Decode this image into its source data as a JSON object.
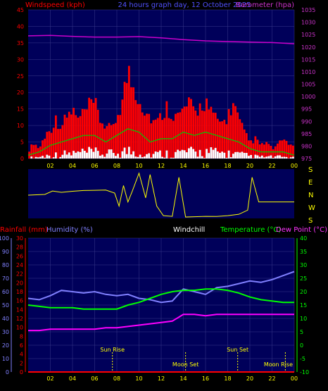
{
  "colors": {
    "background": "#000000",
    "panel": "#00005a",
    "grid": "#3a3a8a",
    "wind_gust": "#ff0000",
    "wind_avg": "#00cc00",
    "wind_low": "#ffffff",
    "barometer": "#cc00cc",
    "direction": "#ffff00",
    "rain": "#ff0000",
    "humidity": "#8080ff",
    "windchill": "#ffffff",
    "temperature": "#00ff00",
    "dewpoint": "#ff00ff",
    "x_tick_label": "#ffff00",
    "marker": "#ffff00"
  },
  "header": {
    "windspeed_label": "Windspeed (kph)",
    "title": "24 hours graph day, 12 October 2025",
    "barometer_label": "Barometer (hpa)"
  },
  "labels2": {
    "rain": "Rainfall (mm)",
    "humidity": "Humidity (%)",
    "windchill": "Windchill",
    "temperature": "Temperature (°C)",
    "dewpoint": "Dew Point (°C)"
  },
  "chart_data": [
    {
      "type": "area",
      "name": "wind",
      "x_ticks": [
        "02",
        "04",
        "06",
        "08",
        "10",
        "12",
        "14",
        "16",
        "18",
        "20",
        "22",
        "00"
      ],
      "x_range_hours": [
        0,
        24
      ],
      "y_left": {
        "ticks": [
          "0",
          "5",
          "10",
          "15",
          "20",
          "25",
          "30",
          "35",
          "40",
          "45"
        ],
        "range": [
          0,
          45
        ]
      },
      "y_right": {
        "ticks": [
          "975",
          "980",
          "985",
          "990",
          "995",
          "1000",
          "1005",
          "1010",
          "1015",
          "1020",
          "1025",
          "1030",
          "1035"
        ],
        "range": [
          975,
          1035
        ]
      },
      "grid": true,
      "gust_kph": [
        {
          "t": 0.0,
          "v": 2
        },
        {
          "t": 0.5,
          "v": 5
        },
        {
          "t": 1.0,
          "v": 3
        },
        {
          "t": 1.5,
          "v": 7
        },
        {
          "t": 2.0,
          "v": 9
        },
        {
          "t": 2.5,
          "v": 12
        },
        {
          "t": 3.0,
          "v": 10
        },
        {
          "t": 3.5,
          "v": 13
        },
        {
          "t": 4.0,
          "v": 15
        },
        {
          "t": 4.5,
          "v": 12
        },
        {
          "t": 5.0,
          "v": 14
        },
        {
          "t": 5.5,
          "v": 16
        },
        {
          "t": 6.0,
          "v": 17
        },
        {
          "t": 6.5,
          "v": 12
        },
        {
          "t": 7.0,
          "v": 10
        },
        {
          "t": 7.5,
          "v": 9
        },
        {
          "t": 8.0,
          "v": 13
        },
        {
          "t": 8.5,
          "v": 18
        },
        {
          "t": 9.0,
          "v": 27
        },
        {
          "t": 9.5,
          "v": 22
        },
        {
          "t": 10.0,
          "v": 19
        },
        {
          "t": 10.5,
          "v": 15
        },
        {
          "t": 11.0,
          "v": 13
        },
        {
          "t": 11.5,
          "v": 11
        },
        {
          "t": 12.0,
          "v": 13
        },
        {
          "t": 12.5,
          "v": 16
        },
        {
          "t": 13.0,
          "v": 14
        },
        {
          "t": 13.5,
          "v": 13
        },
        {
          "t": 14.0,
          "v": 15
        },
        {
          "t": 14.5,
          "v": 17
        },
        {
          "t": 15.0,
          "v": 14
        },
        {
          "t": 15.5,
          "v": 16
        },
        {
          "t": 16.0,
          "v": 18
        },
        {
          "t": 16.5,
          "v": 14
        },
        {
          "t": 17.0,
          "v": 12
        },
        {
          "t": 17.5,
          "v": 11
        },
        {
          "t": 18.0,
          "v": 13
        },
        {
          "t": 18.5,
          "v": 17
        },
        {
          "t": 19.0,
          "v": 12
        },
        {
          "t": 19.5,
          "v": 8
        },
        {
          "t": 20.0,
          "v": 5
        },
        {
          "t": 20.5,
          "v": 6
        },
        {
          "t": 21.0,
          "v": 4
        },
        {
          "t": 21.5,
          "v": 5
        },
        {
          "t": 22.0,
          "v": 3
        },
        {
          "t": 22.5,
          "v": 4
        },
        {
          "t": 23.0,
          "v": 6
        },
        {
          "t": 23.5,
          "v": 5
        },
        {
          "t": 24.0,
          "v": 3
        }
      ],
      "average_kph": [
        {
          "t": 0.0,
          "v": 1
        },
        {
          "t": 1.0,
          "v": 2
        },
        {
          "t": 2.0,
          "v": 4
        },
        {
          "t": 3.0,
          "v": 5
        },
        {
          "t": 4.0,
          "v": 6
        },
        {
          "t": 5.0,
          "v": 7
        },
        {
          "t": 6.0,
          "v": 7
        },
        {
          "t": 7.0,
          "v": 5
        },
        {
          "t": 8.0,
          "v": 7
        },
        {
          "t": 9.0,
          "v": 9
        },
        {
          "t": 10.0,
          "v": 8
        },
        {
          "t": 11.0,
          "v": 5
        },
        {
          "t": 12.0,
          "v": 6
        },
        {
          "t": 13.0,
          "v": 6
        },
        {
          "t": 14.0,
          "v": 8
        },
        {
          "t": 15.0,
          "v": 7
        },
        {
          "t": 16.0,
          "v": 8
        },
        {
          "t": 17.0,
          "v": 7
        },
        {
          "t": 18.0,
          "v": 6
        },
        {
          "t": 19.0,
          "v": 5
        },
        {
          "t": 20.0,
          "v": 3
        },
        {
          "t": 21.0,
          "v": 2
        },
        {
          "t": 22.0,
          "v": 2
        },
        {
          "t": 23.0,
          "v": 2
        },
        {
          "t": 24.0,
          "v": 1
        }
      ],
      "barometer_hpa": [
        {
          "t": 0,
          "v": 1024.5
        },
        {
          "t": 2,
          "v": 1024.7
        },
        {
          "t": 4,
          "v": 1024.3
        },
        {
          "t": 6,
          "v": 1024.0
        },
        {
          "t": 8,
          "v": 1024.0
        },
        {
          "t": 10,
          "v": 1024.2
        },
        {
          "t": 12,
          "v": 1023.7
        },
        {
          "t": 14,
          "v": 1023.0
        },
        {
          "t": 16,
          "v": 1022.5
        },
        {
          "t": 18,
          "v": 1022.2
        },
        {
          "t": 20,
          "v": 1022.0
        },
        {
          "t": 22,
          "v": 1021.8
        },
        {
          "t": 24,
          "v": 1021.3
        }
      ]
    },
    {
      "type": "line",
      "name": "wind-direction",
      "direction_labels": [
        "S",
        "E",
        "N",
        "W",
        "S"
      ],
      "direction_range_deg": [
        0,
        360
      ],
      "direction_deg": [
        {
          "t": 0.0,
          "v": 170
        },
        {
          "t": 1.5,
          "v": 175
        },
        {
          "t": 2.2,
          "v": 200
        },
        {
          "t": 3.0,
          "v": 190
        },
        {
          "t": 4.0,
          "v": 198
        },
        {
          "t": 5.0,
          "v": 204
        },
        {
          "t": 6.0,
          "v": 205
        },
        {
          "t": 7.0,
          "v": 207
        },
        {
          "t": 7.8,
          "v": 185
        },
        {
          "t": 8.2,
          "v": 90
        },
        {
          "t": 8.6,
          "v": 240
        },
        {
          "t": 9.0,
          "v": 120
        },
        {
          "t": 9.4,
          "v": 200
        },
        {
          "t": 10.0,
          "v": 330
        },
        {
          "t": 10.6,
          "v": 150
        },
        {
          "t": 11.0,
          "v": 320
        },
        {
          "t": 11.6,
          "v": 90
        },
        {
          "t": 12.2,
          "v": 20
        },
        {
          "t": 13.0,
          "v": 15
        },
        {
          "t": 13.6,
          "v": 300
        },
        {
          "t": 14.2,
          "v": 10
        },
        {
          "t": 15.0,
          "v": 12
        },
        {
          "t": 16.0,
          "v": 15
        },
        {
          "t": 17.0,
          "v": 14
        },
        {
          "t": 18.0,
          "v": 20
        },
        {
          "t": 19.0,
          "v": 30
        },
        {
          "t": 19.8,
          "v": 60
        },
        {
          "t": 20.2,
          "v": 300
        },
        {
          "t": 20.8,
          "v": 120
        },
        {
          "t": 21.5,
          "v": 120
        },
        {
          "t": 24.0,
          "v": 120
        }
      ]
    },
    {
      "type": "line",
      "name": "temperature-humidity",
      "x_ticks": [
        "02",
        "04",
        "06",
        "08",
        "10",
        "12",
        "14",
        "16",
        "18",
        "20",
        "22",
        "00"
      ],
      "y_humidity": {
        "ticks": [
          "0",
          "10",
          "20",
          "30",
          "40",
          "50",
          "60",
          "70",
          "80",
          "90",
          "100"
        ],
        "range": [
          0,
          100
        ]
      },
      "y_rain": {
        "ticks": [
          "0",
          "2",
          "4",
          "6",
          "8",
          "10",
          "12",
          "14",
          "16",
          "18",
          "20",
          "22",
          "24",
          "26",
          "28",
          "30"
        ],
        "range": [
          0,
          30
        ]
      },
      "y_temperature": {
        "ticks": [
          "-10",
          "-5",
          "0",
          "5",
          "10",
          "15",
          "20",
          "25",
          "30",
          "35",
          "40"
        ],
        "range": [
          -10,
          40
        ]
      },
      "humidity_pct": [
        {
          "t": 0,
          "v": 55
        },
        {
          "t": 1,
          "v": 54
        },
        {
          "t": 2,
          "v": 57
        },
        {
          "t": 3,
          "v": 61
        },
        {
          "t": 4,
          "v": 60
        },
        {
          "t": 5,
          "v": 59
        },
        {
          "t": 6,
          "v": 60
        },
        {
          "t": 7,
          "v": 58
        },
        {
          "t": 8,
          "v": 57
        },
        {
          "t": 9,
          "v": 58
        },
        {
          "t": 10,
          "v": 55
        },
        {
          "t": 11,
          "v": 54
        },
        {
          "t": 12,
          "v": 52
        },
        {
          "t": 13,
          "v": 53
        },
        {
          "t": 14,
          "v": 62
        },
        {
          "t": 15,
          "v": 60
        },
        {
          "t": 16,
          "v": 58
        },
        {
          "t": 17,
          "v": 63
        },
        {
          "t": 18,
          "v": 64
        },
        {
          "t": 19,
          "v": 66
        },
        {
          "t": 20,
          "v": 68
        },
        {
          "t": 21,
          "v": 67
        },
        {
          "t": 22,
          "v": 69
        },
        {
          "t": 23,
          "v": 72
        },
        {
          "t": 24,
          "v": 75
        }
      ],
      "temperature_c": [
        {
          "t": 0,
          "v": 15
        },
        {
          "t": 1,
          "v": 14.5
        },
        {
          "t": 2,
          "v": 14
        },
        {
          "t": 3,
          "v": 14
        },
        {
          "t": 4,
          "v": 14
        },
        {
          "t": 5,
          "v": 13.5
        },
        {
          "t": 6,
          "v": 13.5
        },
        {
          "t": 7,
          "v": 13.5
        },
        {
          "t": 8,
          "v": 13.5
        },
        {
          "t": 9,
          "v": 15
        },
        {
          "t": 10,
          "v": 16
        },
        {
          "t": 11,
          "v": 17.5
        },
        {
          "t": 12,
          "v": 19
        },
        {
          "t": 13,
          "v": 20
        },
        {
          "t": 14,
          "v": 20.5
        },
        {
          "t": 15,
          "v": 20.5
        },
        {
          "t": 16,
          "v": 21
        },
        {
          "t": 17,
          "v": 21
        },
        {
          "t": 18,
          "v": 20.5
        },
        {
          "t": 19,
          "v": 19.5
        },
        {
          "t": 20,
          "v": 18
        },
        {
          "t": 21,
          "v": 17
        },
        {
          "t": 22,
          "v": 16.5
        },
        {
          "t": 23,
          "v": 16
        },
        {
          "t": 24,
          "v": 16
        }
      ],
      "dewpoint_c": [
        {
          "t": 0,
          "v": 5.5
        },
        {
          "t": 1,
          "v": 5.5
        },
        {
          "t": 2,
          "v": 6
        },
        {
          "t": 3,
          "v": 6
        },
        {
          "t": 4,
          "v": 6
        },
        {
          "t": 5,
          "v": 6
        },
        {
          "t": 6,
          "v": 6
        },
        {
          "t": 7,
          "v": 6.5
        },
        {
          "t": 8,
          "v": 6.5
        },
        {
          "t": 9,
          "v": 7
        },
        {
          "t": 10,
          "v": 7.5
        },
        {
          "t": 11,
          "v": 8
        },
        {
          "t": 12,
          "v": 8.5
        },
        {
          "t": 13,
          "v": 9
        },
        {
          "t": 14,
          "v": 11.5
        },
        {
          "t": 15,
          "v": 11.5
        },
        {
          "t": 16,
          "v": 11
        },
        {
          "t": 17,
          "v": 11.5
        },
        {
          "t": 18,
          "v": 11.5
        },
        {
          "t": 19,
          "v": 11.5
        },
        {
          "t": 20,
          "v": 11.5
        },
        {
          "t": 21,
          "v": 11.5
        },
        {
          "t": 22,
          "v": 11.5
        },
        {
          "t": 23,
          "v": 11.5
        },
        {
          "t": 24,
          "v": 11.5
        }
      ],
      "rain_mm": [
        {
          "t": 0,
          "v": 0
        },
        {
          "t": 24,
          "v": 0
        }
      ],
      "events": [
        {
          "label": "Sun Rise",
          "t": 7.6
        },
        {
          "label": "Moon Set",
          "t": 14.2
        },
        {
          "label": "Sun Set",
          "t": 18.9
        },
        {
          "label": "Moon Rise",
          "t": 23.2
        }
      ]
    }
  ]
}
